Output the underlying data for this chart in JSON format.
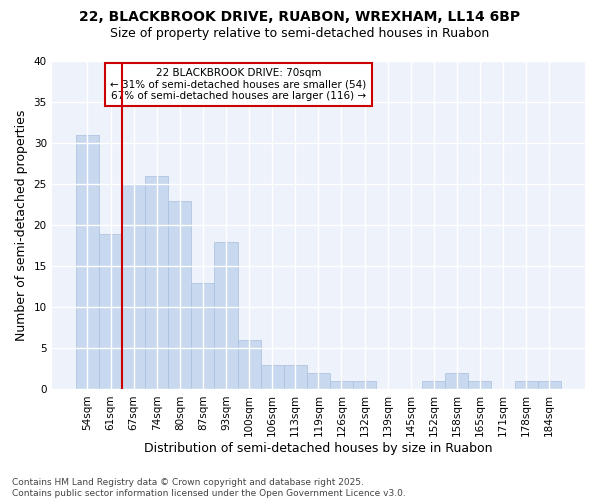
{
  "title_line1": "22, BLACKBROOK DRIVE, RUABON, WREXHAM, LL14 6BP",
  "title_line2": "Size of property relative to semi-detached houses in Ruabon",
  "xlabel": "Distribution of semi-detached houses by size in Ruabon",
  "ylabel": "Number of semi-detached properties",
  "categories": [
    "54sqm",
    "61sqm",
    "67sqm",
    "74sqm",
    "80sqm",
    "87sqm",
    "93sqm",
    "100sqm",
    "106sqm",
    "113sqm",
    "119sqm",
    "126sqm",
    "132sqm",
    "139sqm",
    "145sqm",
    "152sqm",
    "158sqm",
    "165sqm",
    "171sqm",
    "178sqm",
    "184sqm"
  ],
  "values": [
    31,
    19,
    25,
    26,
    23,
    13,
    18,
    6,
    3,
    3,
    2,
    1,
    1,
    0,
    0,
    1,
    2,
    1,
    0,
    1,
    1
  ],
  "bar_color": "#c8d8ee",
  "bar_edge_color": "#a8c0de",
  "highlight_line_index": 2,
  "highlight_line_color": "#cc0000",
  "annotation_title": "22 BLACKBROOK DRIVE: 70sqm",
  "annotation_line1": "← 31% of semi-detached houses are smaller (54)",
  "annotation_line2": "67% of semi-detached houses are larger (116) →",
  "annotation_box_color": "#cc0000",
  "ylim": [
    0,
    40
  ],
  "yticks": [
    0,
    5,
    10,
    15,
    20,
    25,
    30,
    35,
    40
  ],
  "footnote_line1": "Contains HM Land Registry data © Crown copyright and database right 2025.",
  "footnote_line2": "Contains public sector information licensed under the Open Government Licence v3.0.",
  "background_color": "#ffffff",
  "plot_bg_color": "#eef2fa",
  "grid_color": "#ffffff",
  "title_fontsize": 10,
  "subtitle_fontsize": 9,
  "axis_label_fontsize": 9,
  "tick_fontsize": 7.5,
  "footnote_fontsize": 6.5
}
